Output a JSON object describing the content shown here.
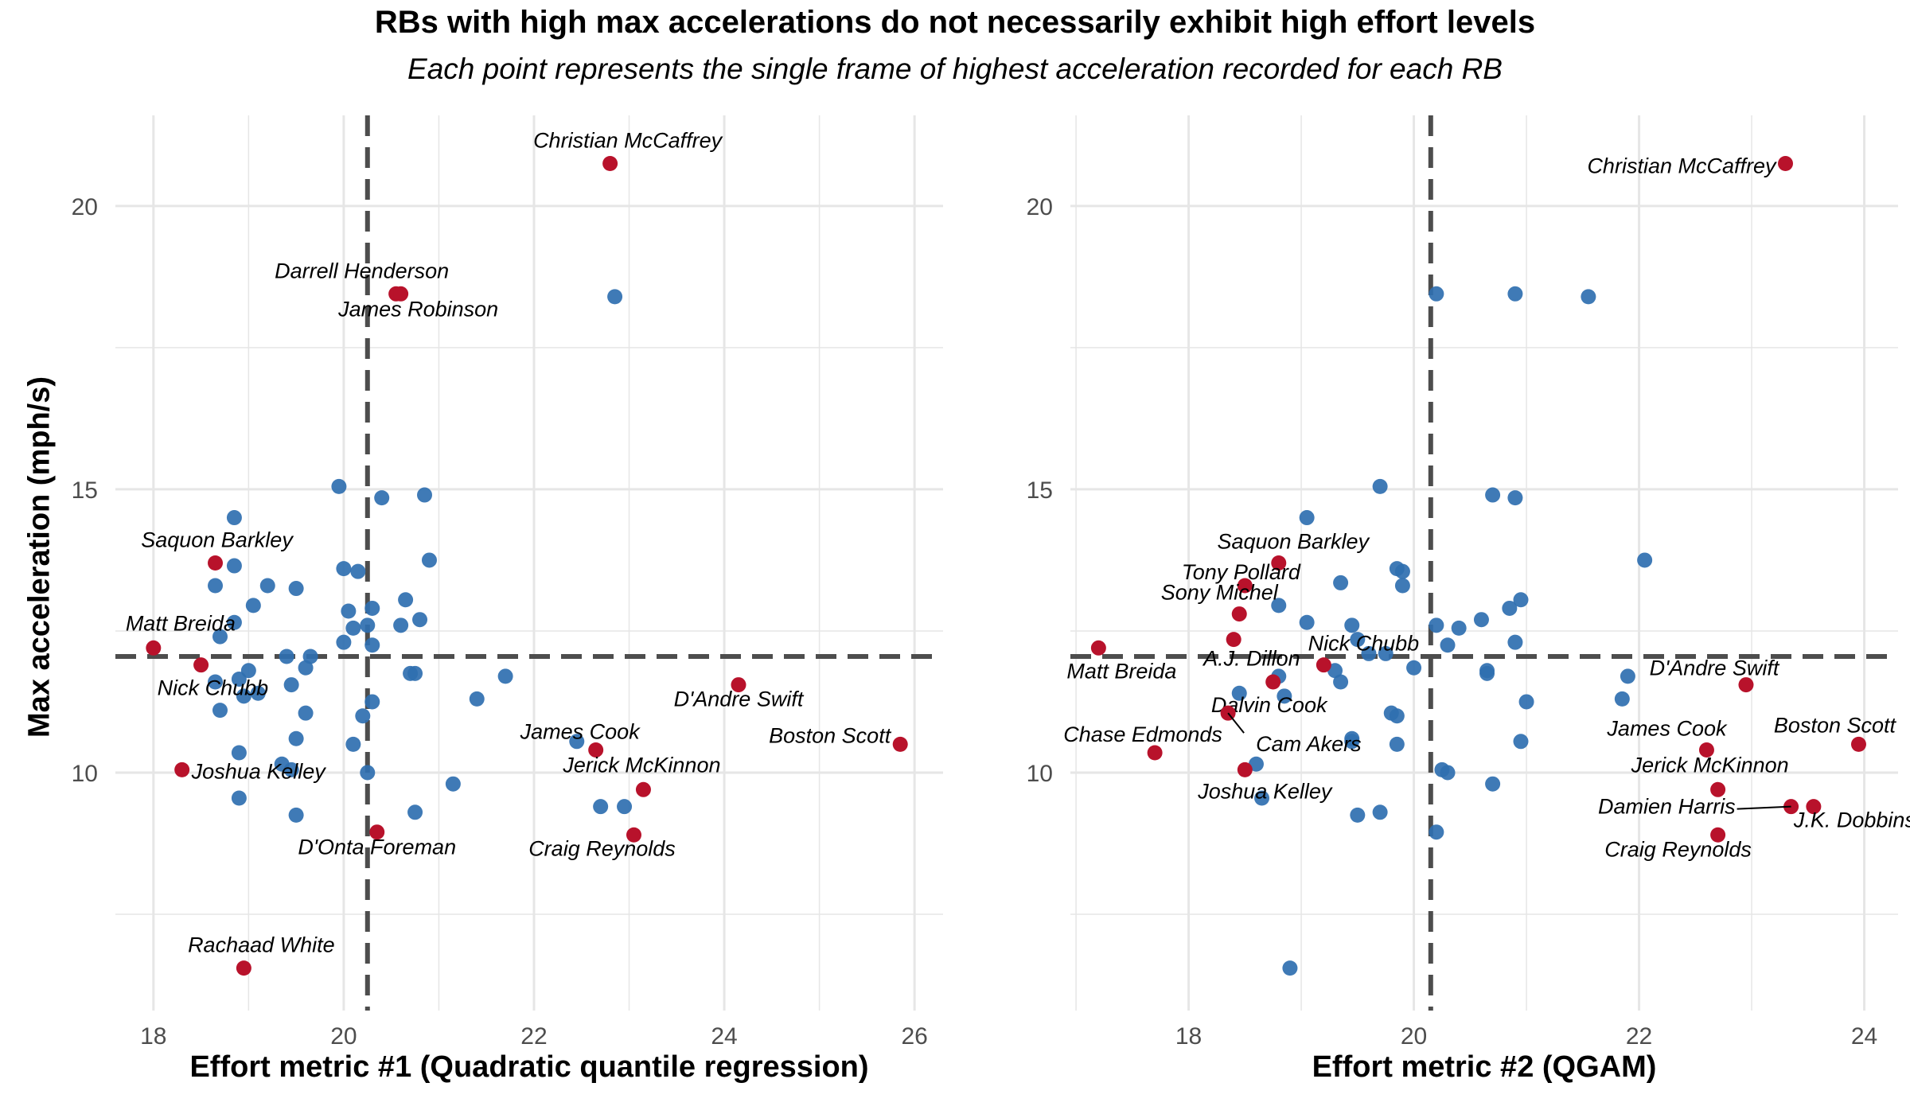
{
  "title": "RBs with high max accelerations do not necessarily exhibit high effort levels",
  "subtitle": "Each point represents the single frame of highest acceleration recorded for each RB",
  "ylabel": "Max acceleration (mph/s)",
  "colors": {
    "highlight": "#b8122b",
    "other": "#2f6fb0",
    "threshold_line": "#4d4d4d",
    "grid": "#e6e6e6"
  },
  "chart_data": [
    {
      "type": "scatter",
      "xlabel": "Effort metric #1 (Quadratic quantile regression)",
      "ylabel": "Max acceleration (mph/s)",
      "xlim": [
        17.6,
        26.3
      ],
      "ylim": [
        5.8,
        21.6
      ],
      "xticks": [
        18,
        20,
        22,
        24,
        26
      ],
      "yticks": [
        10,
        15,
        20
      ],
      "grid": true,
      "vline": 20.25,
      "hline": 12.05,
      "highlighted": [
        {
          "name": "Christian McCaffrey",
          "x": 22.8,
          "y": 20.75
        },
        {
          "name": "Darrell Henderson",
          "x": 20.55,
          "y": 18.45
        },
        {
          "name": "James Robinson",
          "x": 20.6,
          "y": 18.45
        },
        {
          "name": "Saquon Barkley",
          "x": 18.65,
          "y": 13.7
        },
        {
          "name": "Matt Breida",
          "x": 18.0,
          "y": 12.2
        },
        {
          "name": "Nick Chubb",
          "x": 18.5,
          "y": 11.9
        },
        {
          "name": "Joshua Kelley",
          "x": 18.3,
          "y": 10.05
        },
        {
          "name": "D'Onta Foreman",
          "x": 20.35,
          "y": 8.95
        },
        {
          "name": "Rachaad White",
          "x": 18.95,
          "y": 6.55
        },
        {
          "name": "James Cook",
          "x": 22.65,
          "y": 10.4
        },
        {
          "name": "Jerick McKinnon",
          "x": 23.15,
          "y": 9.7
        },
        {
          "name": "Craig Reynolds",
          "x": 23.05,
          "y": 8.9
        },
        {
          "name": "D'Andre Swift",
          "x": 24.15,
          "y": 11.55
        },
        {
          "name": "Boston Scott",
          "x": 25.85,
          "y": 10.5
        }
      ],
      "others": [
        {
          "x": 22.85,
          "y": 18.4
        },
        {
          "x": 18.85,
          "y": 14.5
        },
        {
          "x": 19.95,
          "y": 15.05
        },
        {
          "x": 20.4,
          "y": 14.85
        },
        {
          "x": 20.85,
          "y": 14.9
        },
        {
          "x": 18.85,
          "y": 13.65
        },
        {
          "x": 20.0,
          "y": 13.6
        },
        {
          "x": 20.15,
          "y": 13.55
        },
        {
          "x": 20.9,
          "y": 13.75
        },
        {
          "x": 18.65,
          "y": 13.3
        },
        {
          "x": 19.2,
          "y": 13.3
        },
        {
          "x": 19.5,
          "y": 13.25
        },
        {
          "x": 18.85,
          "y": 12.65
        },
        {
          "x": 19.05,
          "y": 12.95
        },
        {
          "x": 20.05,
          "y": 12.85
        },
        {
          "x": 20.3,
          "y": 12.9
        },
        {
          "x": 20.65,
          "y": 13.05
        },
        {
          "x": 20.8,
          "y": 12.7
        },
        {
          "x": 20.1,
          "y": 12.55
        },
        {
          "x": 20.25,
          "y": 12.6
        },
        {
          "x": 20.6,
          "y": 12.6
        },
        {
          "x": 18.7,
          "y": 12.4
        },
        {
          "x": 20.0,
          "y": 12.3
        },
        {
          "x": 20.3,
          "y": 12.25
        },
        {
          "x": 19.4,
          "y": 12.05
        },
        {
          "x": 19.65,
          "y": 12.05
        },
        {
          "x": 19.6,
          "y": 11.85
        },
        {
          "x": 19.0,
          "y": 11.8
        },
        {
          "x": 18.65,
          "y": 11.6
        },
        {
          "x": 18.9,
          "y": 11.65
        },
        {
          "x": 19.45,
          "y": 11.55
        },
        {
          "x": 20.7,
          "y": 11.75
        },
        {
          "x": 20.75,
          "y": 11.75
        },
        {
          "x": 21.7,
          "y": 11.7
        },
        {
          "x": 18.95,
          "y": 11.35
        },
        {
          "x": 19.1,
          "y": 11.4
        },
        {
          "x": 20.3,
          "y": 11.25
        },
        {
          "x": 21.4,
          "y": 11.3
        },
        {
          "x": 18.7,
          "y": 11.1
        },
        {
          "x": 19.6,
          "y": 11.05
        },
        {
          "x": 20.2,
          "y": 11.0
        },
        {
          "x": 19.5,
          "y": 10.6
        },
        {
          "x": 20.1,
          "y": 10.5
        },
        {
          "x": 22.45,
          "y": 10.55
        },
        {
          "x": 18.9,
          "y": 10.35
        },
        {
          "x": 19.35,
          "y": 10.15
        },
        {
          "x": 19.45,
          "y": 10.05
        },
        {
          "x": 20.25,
          "y": 10.0
        },
        {
          "x": 21.15,
          "y": 9.8
        },
        {
          "x": 18.9,
          "y": 9.55
        },
        {
          "x": 22.7,
          "y": 9.4
        },
        {
          "x": 22.95,
          "y": 9.4
        },
        {
          "x": 19.5,
          "y": 9.25
        },
        {
          "x": 20.75,
          "y": 9.3
        }
      ]
    },
    {
      "type": "scatter",
      "xlabel": "Effort metric #2 (QGAM)",
      "ylabel": "",
      "xlim": [
        16.95,
        24.3
      ],
      "ylim": [
        5.8,
        21.6
      ],
      "xticks": [
        18,
        20,
        22,
        24
      ],
      "yticks": [
        10,
        15,
        20
      ],
      "grid": true,
      "vline": 20.15,
      "hline": 12.05,
      "highlighted": [
        {
          "name": "Christian McCaffrey",
          "x": 23.3,
          "y": 20.75
        },
        {
          "name": "Saquon Barkley",
          "x": 18.8,
          "y": 13.7
        },
        {
          "name": "Tony Pollard",
          "x": 18.5,
          "y": 13.3
        },
        {
          "name": "Sony Michel",
          "x": 18.45,
          "y": 12.8
        },
        {
          "name": "Matt Breida",
          "x": 17.2,
          "y": 12.2
        },
        {
          "name": "A.J. Dillon",
          "x": 18.4,
          "y": 12.35
        },
        {
          "name": "Nick Chubb",
          "x": 19.2,
          "y": 11.9
        },
        {
          "name": "Dalvin Cook",
          "x": 18.75,
          "y": 11.6
        },
        {
          "name": "Cam Akers",
          "x": 18.35,
          "y": 11.05
        },
        {
          "name": "Chase Edmonds",
          "x": 17.7,
          "y": 10.35
        },
        {
          "name": "Joshua Kelley",
          "x": 18.5,
          "y": 10.05
        },
        {
          "name": "D'Andre Swift",
          "x": 22.95,
          "y": 11.55
        },
        {
          "name": "James Cook",
          "x": 22.6,
          "y": 10.4
        },
        {
          "name": "Boston Scott",
          "x": 23.95,
          "y": 10.5
        },
        {
          "name": "Jerick McKinnon",
          "x": 22.7,
          "y": 9.7
        },
        {
          "name": "Damien Harris",
          "x": 23.35,
          "y": 9.4
        },
        {
          "name": "J.K. Dobbins",
          "x": 23.55,
          "y": 9.4
        },
        {
          "name": "Craig Reynolds",
          "x": 22.7,
          "y": 8.9
        }
      ],
      "others": [
        {
          "x": 20.2,
          "y": 18.45
        },
        {
          "x": 20.9,
          "y": 18.45
        },
        {
          "x": 21.55,
          "y": 18.4
        },
        {
          "x": 19.05,
          "y": 14.5
        },
        {
          "x": 19.7,
          "y": 15.05
        },
        {
          "x": 20.7,
          "y": 14.9
        },
        {
          "x": 20.9,
          "y": 14.85
        },
        {
          "x": 22.05,
          "y": 13.75
        },
        {
          "x": 19.85,
          "y": 13.6
        },
        {
          "x": 19.9,
          "y": 13.55
        },
        {
          "x": 19.35,
          "y": 13.35
        },
        {
          "x": 19.9,
          "y": 13.3
        },
        {
          "x": 18.8,
          "y": 12.95
        },
        {
          "x": 20.85,
          "y": 12.9
        },
        {
          "x": 20.95,
          "y": 13.05
        },
        {
          "x": 19.05,
          "y": 12.65
        },
        {
          "x": 19.45,
          "y": 12.6
        },
        {
          "x": 20.2,
          "y": 12.6
        },
        {
          "x": 20.4,
          "y": 12.55
        },
        {
          "x": 20.6,
          "y": 12.7
        },
        {
          "x": 20.9,
          "y": 12.3
        },
        {
          "x": 19.5,
          "y": 12.35
        },
        {
          "x": 20.3,
          "y": 12.25
        },
        {
          "x": 19.6,
          "y": 12.1
        },
        {
          "x": 19.75,
          "y": 12.1
        },
        {
          "x": 19.3,
          "y": 11.8
        },
        {
          "x": 20.0,
          "y": 11.85
        },
        {
          "x": 20.65,
          "y": 11.75
        },
        {
          "x": 20.65,
          "y": 11.8
        },
        {
          "x": 18.8,
          "y": 11.7
        },
        {
          "x": 19.35,
          "y": 11.6
        },
        {
          "x": 21.9,
          "y": 11.7
        },
        {
          "x": 18.45,
          "y": 11.4
        },
        {
          "x": 18.85,
          "y": 11.35
        },
        {
          "x": 21.0,
          "y": 11.25
        },
        {
          "x": 21.85,
          "y": 11.3
        },
        {
          "x": 19.8,
          "y": 11.05
        },
        {
          "x": 19.85,
          "y": 11.0
        },
        {
          "x": 19.45,
          "y": 10.6
        },
        {
          "x": 19.45,
          "y": 10.55
        },
        {
          "x": 19.85,
          "y": 10.5
        },
        {
          "x": 20.95,
          "y": 10.55
        },
        {
          "x": 18.6,
          "y": 10.15
        },
        {
          "x": 20.25,
          "y": 10.05
        },
        {
          "x": 20.3,
          "y": 10.0
        },
        {
          "x": 20.7,
          "y": 9.8
        },
        {
          "x": 18.65,
          "y": 9.55
        },
        {
          "x": 19.5,
          "y": 9.25
        },
        {
          "x": 19.7,
          "y": 9.3
        },
        {
          "x": 20.2,
          "y": 8.95
        },
        {
          "x": 18.9,
          "y": 6.55
        }
      ]
    }
  ]
}
